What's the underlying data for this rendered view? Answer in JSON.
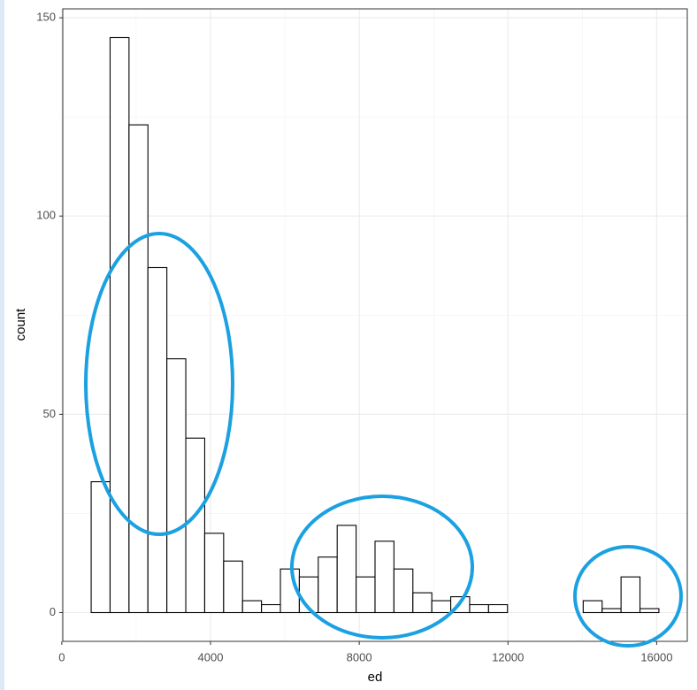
{
  "chart_data": {
    "type": "histogram",
    "x_label": "ed",
    "y_label": "count",
    "bins": [
      790,
      1299,
      1808,
      2317,
      2826,
      3335,
      3844,
      4353,
      4862,
      5371,
      5880,
      6389,
      6898,
      7407,
      7916,
      8425,
      8934,
      9443,
      9952,
      10461,
      10970,
      11479,
      11988,
      12497,
      13006,
      13515,
      14024,
      14533,
      15042,
      15551,
      16060
    ],
    "counts": [
      33,
      145,
      123,
      87,
      64,
      44,
      20,
      13,
      3,
      2,
      11,
      9,
      14,
      22,
      9,
      18,
      11,
      5,
      3,
      4,
      2,
      2,
      0,
      0,
      0,
      0,
      3,
      1,
      9,
      1
    ],
    "color": "#ffffff",
    "edge_color": "#000000",
    "xlim": [
      27,
      16823
    ],
    "xticks": [
      0,
      4000,
      8000,
      12000,
      16000
    ],
    "x_minor_ticks": [
      2000,
      6000,
      10000,
      14000
    ],
    "ylim": [
      -7.25,
      152.25
    ],
    "yticks": [
      0,
      50,
      100,
      150
    ],
    "y_minor_ticks": [
      25,
      75,
      125
    ],
    "grid": true
  }
}
